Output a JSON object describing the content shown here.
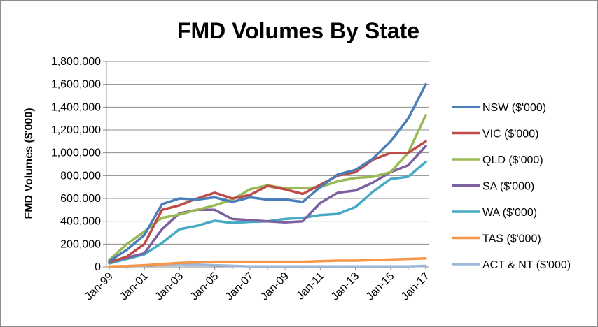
{
  "chart_data": {
    "type": "line",
    "title": "FMD Volumes By State",
    "ylabel": "FMD Volumes ($'000)",
    "xlabel": "",
    "ylim": [
      0,
      1800000
    ],
    "y_ticks": [
      "0",
      "200,000",
      "400,000",
      "600,000",
      "800,000",
      "1,000,000",
      "1,200,000",
      "1,400,000",
      "1,600,000",
      "1,800,000"
    ],
    "y_tick_values": [
      0,
      200000,
      400000,
      600000,
      800000,
      1000000,
      1200000,
      1400000,
      1600000,
      1800000
    ],
    "x": [
      "Jan-99",
      "Jan-00",
      "Jan-01",
      "Jan-02",
      "Jan-03",
      "Jan-04",
      "Jan-05",
      "Jan-06",
      "Jan-07",
      "Jan-08",
      "Jan-09",
      "Jan-10",
      "Jan-11",
      "Jan-12",
      "Jan-13",
      "Jan-14",
      "Jan-15",
      "Jan-16",
      "Jan-17"
    ],
    "x_tick_labels": [
      "Jan-99",
      "Jan-01",
      "Jan-03",
      "Jan-05",
      "Jan-07",
      "Jan-09",
      "Jan-11",
      "Jan-13",
      "Jan-15",
      "Jan-17"
    ],
    "grid": "horizontal",
    "legend_position": "right",
    "series": [
      {
        "name": "NSW ($'000)",
        "color": "#4a7ebb",
        "values": [
          50000,
          150000,
          280000,
          550000,
          600000,
          590000,
          610000,
          570000,
          610000,
          590000,
          590000,
          570000,
          700000,
          810000,
          850000,
          950000,
          1100000,
          1300000,
          1600000
        ]
      },
      {
        "name": "VIC ($'000)",
        "color": "#be4b48",
        "values": [
          40000,
          90000,
          200000,
          500000,
          540000,
          600000,
          650000,
          600000,
          630000,
          710000,
          680000,
          640000,
          720000,
          800000,
          830000,
          940000,
          1000000,
          1000000,
          1100000
        ]
      },
      {
        "name": "QLD ($'000)",
        "color": "#98b954",
        "values": [
          60000,
          200000,
          310000,
          430000,
          460000,
          500000,
          540000,
          590000,
          680000,
          715000,
          690000,
          690000,
          700000,
          750000,
          780000,
          790000,
          830000,
          1000000,
          1330000
        ]
      },
      {
        "name": "SA ($'000)",
        "color": "#7d60a0",
        "values": [
          50000,
          80000,
          120000,
          330000,
          470000,
          500000,
          500000,
          420000,
          410000,
          400000,
          390000,
          400000,
          560000,
          650000,
          670000,
          740000,
          830000,
          890000,
          1060000
        ]
      },
      {
        "name": "WA ($'000)",
        "color": "#46aac5",
        "values": [
          30000,
          70000,
          110000,
          210000,
          330000,
          360000,
          405000,
          385000,
          395000,
          400000,
          420000,
          430000,
          455000,
          465000,
          525000,
          660000,
          770000,
          790000,
          920000
        ]
      },
      {
        "name": "TAS ($'000)",
        "color": "#f79646",
        "values": [
          5000,
          8000,
          15000,
          25000,
          35000,
          40000,
          45000,
          45000,
          45000,
          45000,
          45000,
          45000,
          50000,
          55000,
          55000,
          60000,
          65000,
          70000,
          75000
        ]
      },
      {
        "name": "ACT & NT ($'000)",
        "color": "#9bb7d9",
        "values": [
          2000,
          5000,
          10000,
          20000,
          25000,
          20000,
          15000,
          10000,
          5000,
          5000,
          5000,
          5000,
          5000,
          5000,
          5000,
          5000,
          5000,
          5000,
          10000
        ]
      }
    ]
  }
}
